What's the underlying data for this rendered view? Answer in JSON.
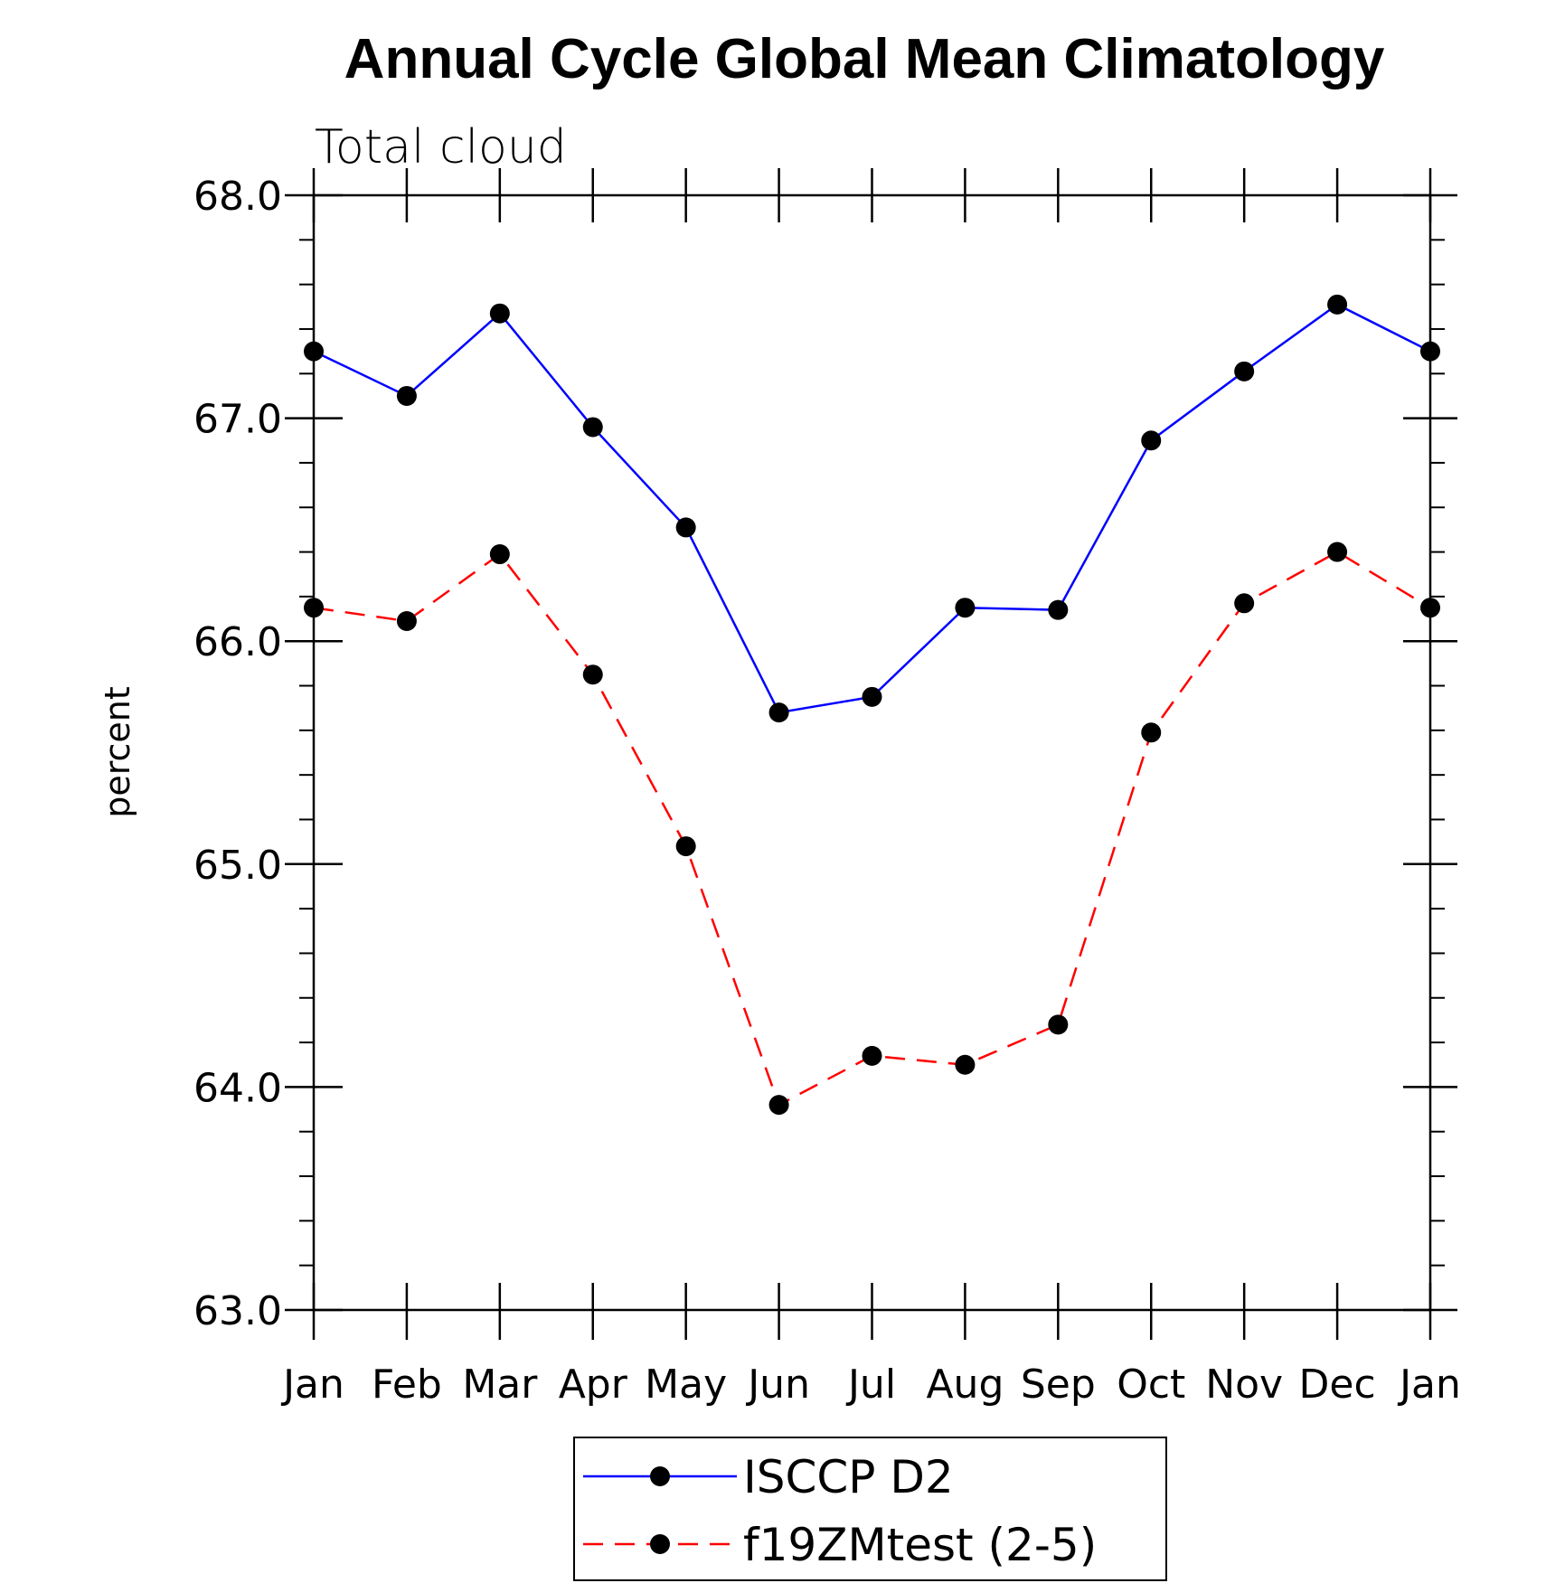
{
  "chart_data": {
    "type": "line",
    "title": "Annual Cycle Global Mean Climatology",
    "subtitle": "Total cloud",
    "xlabel": "",
    "ylabel": "percent",
    "categories": [
      "Jan",
      "Feb",
      "Mar",
      "Apr",
      "May",
      "Jun",
      "Jul",
      "Aug",
      "Sep",
      "Oct",
      "Nov",
      "Dec",
      "Jan"
    ],
    "ylim": [
      63.0,
      68.0
    ],
    "yticks": [
      "63.0",
      "64.0",
      "65.0",
      "66.0",
      "67.0",
      "68.0"
    ],
    "grid": false,
    "legend_position": "bottom-center",
    "series": [
      {
        "name": "ISCCP D2",
        "color": "#0000ff",
        "style": "solid",
        "marker": "circle",
        "values": [
          67.3,
          67.1,
          67.47,
          66.96,
          66.51,
          65.68,
          65.75,
          66.15,
          66.14,
          66.9,
          67.21,
          67.51,
          67.3
        ]
      },
      {
        "name": "f19ZMtest (2-5)",
        "color": "#ff0000",
        "style": "dashed",
        "marker": "circle",
        "values": [
          66.15,
          66.09,
          66.39,
          65.85,
          65.08,
          63.92,
          64.14,
          64.1,
          64.28,
          65.59,
          66.17,
          66.4,
          66.15
        ]
      }
    ]
  }
}
